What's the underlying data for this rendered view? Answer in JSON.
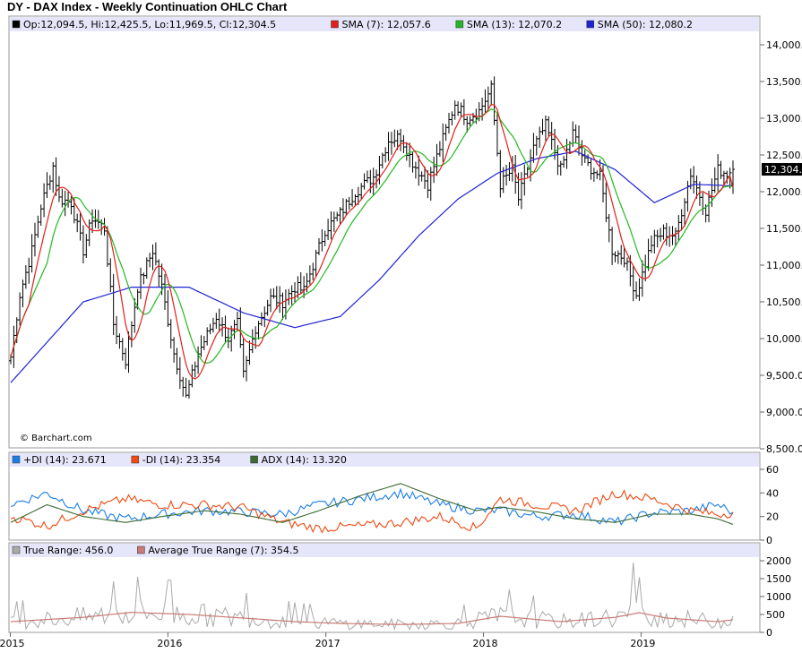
{
  "title": "DY - DAX Index - Weekly Continuation OHLC Chart",
  "watermark": "© Barchart.com",
  "colors": {
    "ohlc": "#000000",
    "sma7": "#e0211a",
    "sma13": "#23b823",
    "sma50": "#1d23d4",
    "plus_di": "#1a7ee6",
    "minus_di": "#ef4a12",
    "adx": "#3c6a33",
    "true_range": "#aaaaaa",
    "atr": "#c87a75",
    "legend_bg": "#e6e6fa",
    "last_price_bg": "#000000"
  },
  "legend_price": [
    {
      "swatch": "#000000",
      "text": "Op:12,094.5, Hi:12,425.5, Lo:11,969.5, Cl:12,304.5"
    },
    {
      "swatch": "#e0211a",
      "text": "SMA (7): 12,057.6"
    },
    {
      "swatch": "#23b823",
      "text": "SMA (13): 12,070.2"
    },
    {
      "swatch": "#1d23d4",
      "text": "SMA (50): 12,080.2"
    }
  ],
  "legend_adx": [
    {
      "swatch": "#1a7ee6",
      "text": "+DI (14): 23.671"
    },
    {
      "swatch": "#ef4a12",
      "text": "-DI (14): 23.354"
    },
    {
      "swatch": "#3c6a33",
      "text": "ADX (14): 13.320"
    }
  ],
  "legend_tr": [
    {
      "swatch": "#aaaaaa",
      "text": "True Range: 456.0"
    },
    {
      "swatch": "#c87a75",
      "text": "Average True Range (7): 354.5"
    }
  ],
  "last_price_label": "12,304.5",
  "chart_data": [
    {
      "type": "ohlc",
      "title": "DY - DAX Index - Weekly Continuation OHLC Chart",
      "x_ticks": [
        "2015",
        "2016",
        "2017",
        "2018",
        "2019"
      ],
      "x_range": [
        "2015-01-02",
        "2019-08-02"
      ],
      "y_ticks": [
        "8,500.0",
        "9,000.0",
        "9,500.0",
        "10,000.0",
        "10,500.0",
        "11,000.0",
        "11,500.0",
        "12,000.0",
        "12,500.0",
        "13,000.0",
        "13,500.0",
        "14,000.0"
      ],
      "ylim": [
        8500,
        14200
      ],
      "grid": false,
      "legend_position": "top",
      "last": {
        "open": 12094.5,
        "high": 12425.5,
        "low": 11969.5,
        "close": 12304.5
      },
      "series": [
        {
          "name": "SMA (7)",
          "last": 12057.6
        },
        {
          "name": "SMA (13)",
          "last": 12070.2
        },
        {
          "name": "SMA (50)",
          "last": 12080.2
        }
      ],
      "close_keypoints": [
        [
          "2015-01-02",
          9750
        ],
        [
          "2015-01-23",
          10600
        ],
        [
          "2015-02-20",
          11200
        ],
        [
          "2015-03-13",
          11800
        ],
        [
          "2015-04-10",
          12350
        ],
        [
          "2015-04-24",
          11900
        ],
        [
          "2015-05-22",
          11850
        ],
        [
          "2015-06-19",
          11200
        ],
        [
          "2015-07-10",
          11650
        ],
        [
          "2015-08-07",
          11500
        ],
        [
          "2015-08-28",
          10200
        ],
        [
          "2015-09-25",
          9700
        ],
        [
          "2015-10-23",
          10700
        ],
        [
          "2015-11-27",
          11200
        ],
        [
          "2015-12-18",
          10700
        ],
        [
          "2016-01-15",
          9800
        ],
        [
          "2016-02-12",
          9200
        ],
        [
          "2016-03-11",
          9800
        ],
        [
          "2016-04-22",
          10300
        ],
        [
          "2016-05-20",
          10000
        ],
        [
          "2016-06-10",
          10200
        ],
        [
          "2016-06-24",
          9500
        ],
        [
          "2016-07-22",
          10150
        ],
        [
          "2016-08-26",
          10550
        ],
        [
          "2016-09-23",
          10500
        ],
        [
          "2016-10-21",
          10700
        ],
        [
          "2016-11-11",
          10650
        ],
        [
          "2016-12-02",
          11000
        ],
        [
          "2016-12-30",
          11480
        ],
        [
          "2017-02-03",
          11700
        ],
        [
          "2017-03-10",
          12000
        ],
        [
          "2017-04-21",
          12200
        ],
        [
          "2017-05-26",
          12700
        ],
        [
          "2017-06-23",
          12750
        ],
        [
          "2017-07-21",
          12400
        ],
        [
          "2017-08-25",
          12100
        ],
        [
          "2017-09-22",
          12600
        ],
        [
          "2017-10-27",
          13200
        ],
        [
          "2017-11-24",
          13000
        ],
        [
          "2017-12-22",
          13100
        ],
        [
          "2018-01-19",
          13400
        ],
        [
          "2018-02-09",
          12100
        ],
        [
          "2018-03-09",
          12300
        ],
        [
          "2018-03-23",
          11900
        ],
        [
          "2018-04-27",
          12600
        ],
        [
          "2018-05-25",
          12900
        ],
        [
          "2018-06-29",
          12300
        ],
        [
          "2018-07-27",
          12800
        ],
        [
          "2018-08-24",
          12400
        ],
        [
          "2018-09-28",
          12200
        ],
        [
          "2018-10-26",
          11200
        ],
        [
          "2018-11-23",
          11100
        ],
        [
          "2018-12-21",
          10600
        ],
        [
          "2019-01-25",
          11300
        ],
        [
          "2019-02-22",
          11450
        ],
        [
          "2019-03-22",
          11400
        ],
        [
          "2019-04-26",
          12250
        ],
        [
          "2019-05-31",
          11750
        ],
        [
          "2019-06-28",
          12300
        ],
        [
          "2019-07-19",
          12250
        ],
        [
          "2019-08-02",
          12300
        ]
      ],
      "sma50_keypoints": [
        [
          "2015-01-02",
          9400
        ],
        [
          "2015-06-19",
          10500
        ],
        [
          "2015-10-09",
          10700
        ],
        [
          "2016-02-19",
          10700
        ],
        [
          "2016-06-24",
          10350
        ],
        [
          "2016-10-21",
          10150
        ],
        [
          "2017-02-03",
          10300
        ],
        [
          "2017-05-05",
          10800
        ],
        [
          "2017-08-04",
          11400
        ],
        [
          "2017-11-03",
          11900
        ],
        [
          "2018-02-02",
          12250
        ],
        [
          "2018-05-04",
          12450
        ],
        [
          "2018-08-03",
          12550
        ],
        [
          "2018-11-02",
          12300
        ],
        [
          "2019-02-01",
          11850
        ],
        [
          "2019-05-03",
          12100
        ],
        [
          "2019-08-02",
          12080
        ]
      ]
    },
    {
      "type": "line",
      "title": "ADX (14)",
      "y_ticks": [
        "0",
        "20",
        "40",
        "60"
      ],
      "ylim": [
        0,
        60
      ],
      "series": [
        {
          "name": "+DI (14)",
          "last": 23.671,
          "keypoints": [
            [
              "2015-01-02",
              30
            ],
            [
              "2015-03-27",
              40
            ],
            [
              "2015-06-19",
              25
            ],
            [
              "2015-09-25",
              18
            ],
            [
              "2015-12-18",
              22
            ],
            [
              "2016-03-25",
              25
            ],
            [
              "2016-06-17",
              24
            ],
            [
              "2016-09-23",
              22
            ],
            [
              "2016-12-16",
              30
            ],
            [
              "2017-03-24",
              35
            ],
            [
              "2017-06-23",
              40
            ],
            [
              "2017-09-22",
              30
            ],
            [
              "2017-12-15",
              25
            ],
            [
              "2018-02-09",
              25
            ],
            [
              "2018-05-04",
              20
            ],
            [
              "2018-08-03",
              22
            ],
            [
              "2018-11-02",
              15
            ],
            [
              "2019-01-25",
              23
            ],
            [
              "2019-04-26",
              25
            ],
            [
              "2019-06-28",
              30
            ],
            [
              "2019-08-02",
              23.671
            ]
          ]
        },
        {
          "name": "-DI (14)",
          "last": 23.354,
          "keypoints": [
            [
              "2015-01-02",
              20
            ],
            [
              "2015-03-27",
              12
            ],
            [
              "2015-06-19",
              25
            ],
            [
              "2015-09-25",
              35
            ],
            [
              "2015-12-18",
              30
            ],
            [
              "2016-03-25",
              30
            ],
            [
              "2016-06-17",
              28
            ],
            [
              "2016-09-23",
              15
            ],
            [
              "2016-12-16",
              10
            ],
            [
              "2017-03-24",
              12
            ],
            [
              "2017-06-23",
              15
            ],
            [
              "2017-09-22",
              20
            ],
            [
              "2017-12-15",
              10
            ],
            [
              "2018-02-09",
              35
            ],
            [
              "2018-05-04",
              30
            ],
            [
              "2018-08-03",
              25
            ],
            [
              "2018-11-02",
              40
            ],
            [
              "2019-01-25",
              35
            ],
            [
              "2019-04-26",
              25
            ],
            [
              "2019-06-28",
              22
            ],
            [
              "2019-08-02",
              23.354
            ]
          ]
        },
        {
          "name": "ADX (14)",
          "last": 13.32,
          "keypoints": [
            [
              "2015-01-02",
              15
            ],
            [
              "2015-03-27",
              30
            ],
            [
              "2015-06-19",
              20
            ],
            [
              "2015-09-25",
              15
            ],
            [
              "2015-12-18",
              20
            ],
            [
              "2016-03-25",
              25
            ],
            [
              "2016-06-17",
              22
            ],
            [
              "2016-09-23",
              15
            ],
            [
              "2016-12-16",
              25
            ],
            [
              "2017-03-24",
              38
            ],
            [
              "2017-06-23",
              48
            ],
            [
              "2017-09-22",
              35
            ],
            [
              "2017-12-15",
              25
            ],
            [
              "2018-02-09",
              28
            ],
            [
              "2018-05-04",
              24
            ],
            [
              "2018-08-03",
              18
            ],
            [
              "2018-11-02",
              15
            ],
            [
              "2019-01-25",
              22
            ],
            [
              "2019-04-26",
              22
            ],
            [
              "2019-06-28",
              18
            ],
            [
              "2019-08-02",
              13.32
            ]
          ]
        }
      ]
    },
    {
      "type": "line",
      "title": "True Range",
      "y_ticks": [
        "0",
        "500",
        "1000",
        "1500",
        "2000"
      ],
      "ylim": [
        0,
        2100
      ],
      "series": [
        {
          "name": "True Range",
          "last": 456.0
        },
        {
          "name": "Average True Range (7)",
          "last": 354.5,
          "keypoints": [
            [
              "2015-01-02",
              300
            ],
            [
              "2015-06-19",
              420
            ],
            [
              "2015-10-09",
              560
            ],
            [
              "2016-02-19",
              500
            ],
            [
              "2016-06-24",
              400
            ],
            [
              "2016-10-21",
              300
            ],
            [
              "2017-02-03",
              250
            ],
            [
              "2017-06-23",
              220
            ],
            [
              "2017-11-03",
              250
            ],
            [
              "2018-02-09",
              450
            ],
            [
              "2018-06-29",
              300
            ],
            [
              "2018-11-02",
              420
            ],
            [
              "2018-12-28",
              550
            ],
            [
              "2019-03-01",
              400
            ],
            [
              "2019-06-28",
              300
            ],
            [
              "2019-08-02",
              354.5
            ]
          ]
        }
      ]
    }
  ]
}
